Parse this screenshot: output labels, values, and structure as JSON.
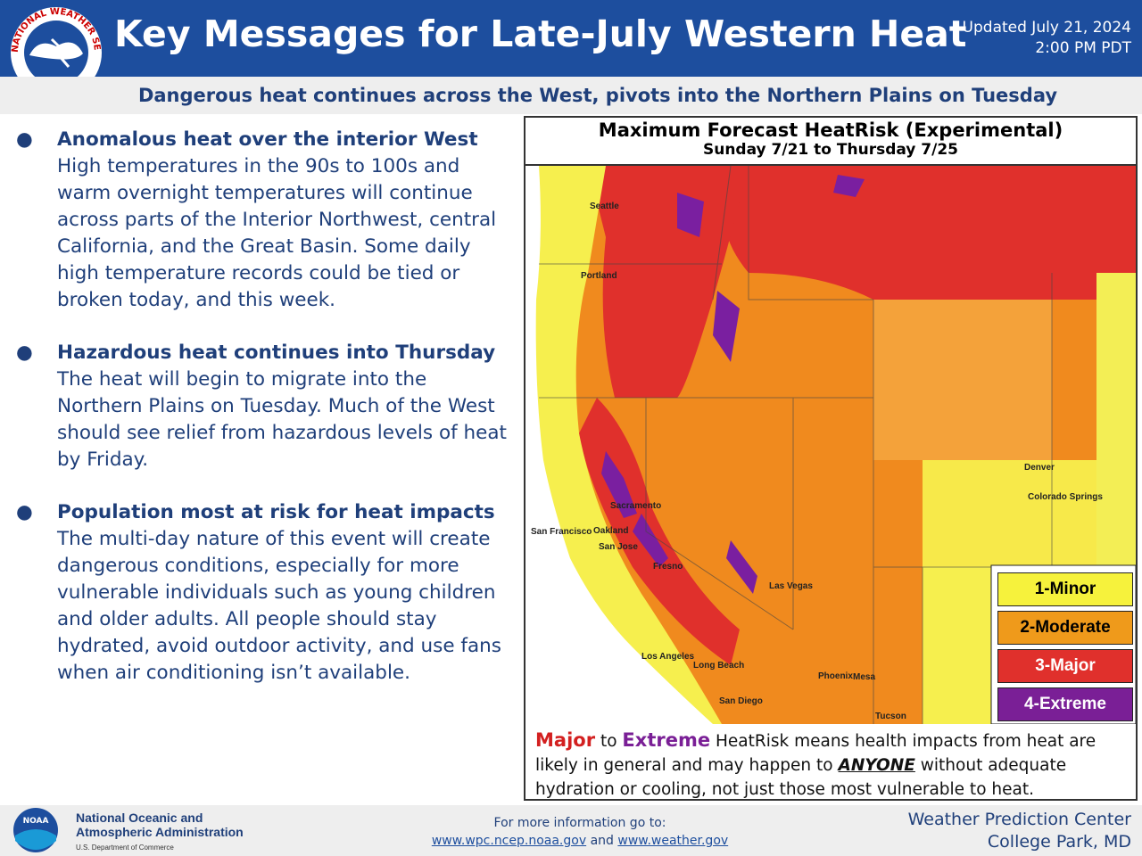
{
  "header": {
    "logo_text": "NATIONAL WEATHER SERVICE",
    "title": "Key Messages for Late-July Western Heat",
    "updated": "Updated July 21, 2024",
    "time": "2:00 PM PDT"
  },
  "subtitle": "Dangerous heat continues across the West, pivots into the Northern Plains on Tuesday",
  "bullets": [
    {
      "heading": "Anomalous heat over the interior West",
      "text": "High temperatures in the 90s to 100s and warm overnight temperatures will continue across parts of the Interior Northwest, central California, and the Great Basin. Some daily high temperature records could be tied or broken today, and this week."
    },
    {
      "heading": "Hazardous heat continues into Thursday",
      "text": "The heat will begin to migrate into the Northern Plains on Tuesday. Much of the West should see relief from hazardous levels of heat by Friday."
    },
    {
      "heading": "Population most at risk for heat impacts",
      "text": "The multi-day nature of this event will create dangerous conditions, especially for more vulnerable individuals such as young children and older adults. All people should stay hydrated, avoid outdoor activity, and use fans when air conditioning isn’t available."
    }
  ],
  "map": {
    "title": "Maximum Forecast HeatRisk (Experimental)",
    "subtitle": "Sunday 7/21 to Thursday 7/25",
    "cities": [
      "Seattle",
      "Portland",
      "Sacramento",
      "San Francisco",
      "Oakland",
      "San Jose",
      "Fresno",
      "Las Vegas",
      "Los Angeles",
      "Long Beach",
      "San Diego",
      "Phoenix",
      "Mesa",
      "Tucson",
      "Denver",
      "Colorado Springs"
    ],
    "legend": [
      "1-Minor",
      "2-Moderate",
      "3-Major",
      "4-Extreme"
    ]
  },
  "note": {
    "major": "Major",
    "to": "to",
    "extreme": "Extreme",
    "text1": "HeatRisk means health impacts from heat are likely in general and may happen to",
    "anyone": "ANYONE",
    "text2": "without adequate hydration or cooling, not just those most vulnerable to heat."
  },
  "footer": {
    "noaa_logo": "NOAA",
    "agency_line1": "National Oceanic and",
    "agency_line2": "Atmospheric Administration",
    "department": "U.S. Department of Commerce",
    "info": "For more information go to:",
    "link1": "www.wpc.ncep.noaa.gov",
    "and": "and",
    "link2": "www.weather.gov",
    "center": "Weather Prediction Center",
    "location": "College Park, MD"
  }
}
